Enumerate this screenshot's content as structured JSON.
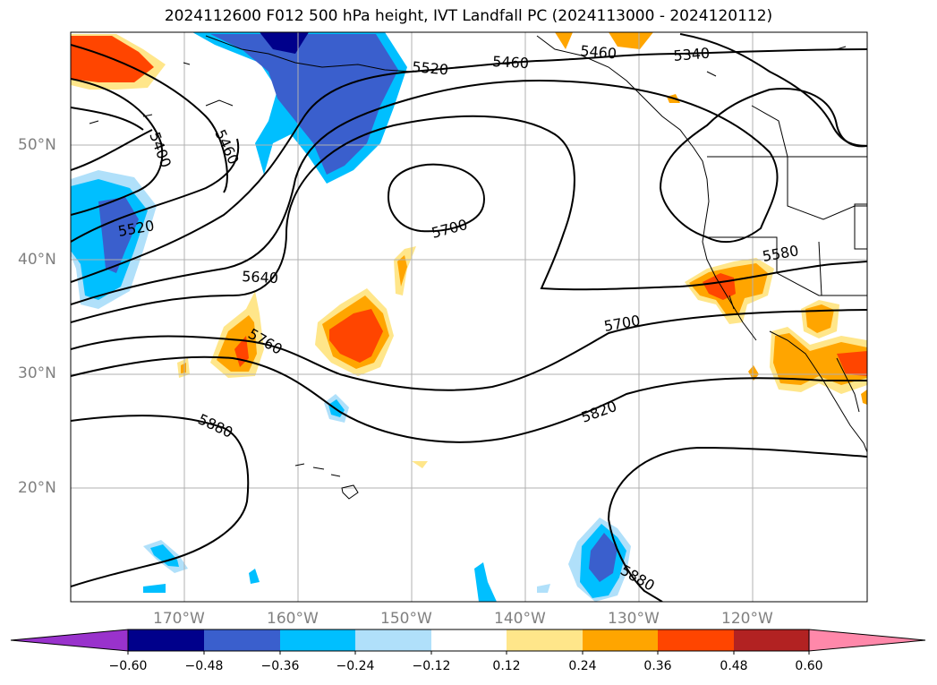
{
  "title": "2024112600 F012 500 hPa height, IVT Landfall PC (2024113000 - 2024120112)",
  "lat_labels": [
    "50°N",
    "40°N",
    "30°N",
    "20°N"
  ],
  "lon_labels": [
    "170°W",
    "160°W",
    "150°W",
    "140°W",
    "130°W",
    "120°W"
  ],
  "contour_labels": [
    "5340",
    "5400",
    "5460",
    "5460",
    "5520",
    "5520",
    "5580",
    "5640",
    "5700",
    "5700",
    "5760",
    "5820",
    "5880",
    "5880",
    "5460"
  ],
  "colorbar": {
    "ticks": [
      "−0.60",
      "−0.48",
      "−0.36",
      "−0.24",
      "−0.12",
      "0.12",
      "0.24",
      "0.36",
      "0.48",
      "0.60"
    ],
    "colors": [
      "#9932cc",
      "#00008b",
      "#3a5fcd",
      "#00bfff",
      "#b0e0fa",
      "#ffffff",
      "#ffe68a",
      "#ffa500",
      "#ff4500",
      "#b22222",
      "#ff88aa"
    ]
  },
  "fill_colors": {
    "neg_light": "#b0e0fa",
    "neg_mid": "#00bfff",
    "neg_strong": "#3a5fcd",
    "neg_max": "#00008b",
    "pos_light": "#ffe68a",
    "pos_mid": "#ffa500",
    "pos_strong": "#ff4500"
  }
}
